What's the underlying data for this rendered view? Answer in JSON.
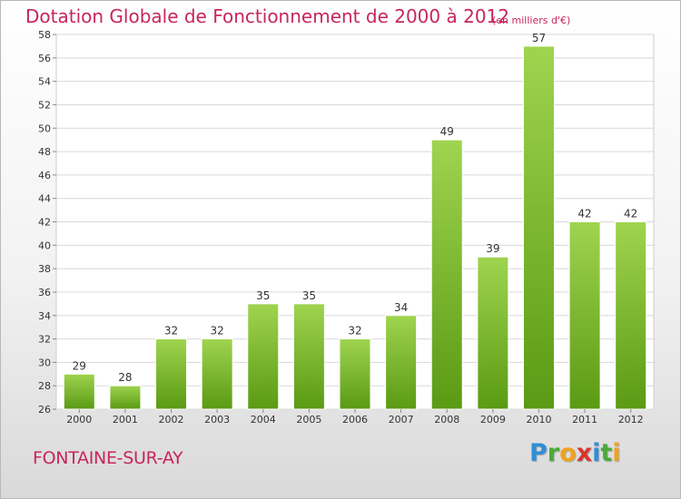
{
  "header": {
    "title": "Dotation Globale de Fonctionnement de 2000 à 2012",
    "subtitle": "(en milliers d'€)"
  },
  "footer": {
    "commune": "FONTAINE-SUR-AY",
    "logo_letters": [
      "P",
      "r",
      "o",
      "x",
      "i",
      "t",
      "i"
    ]
  },
  "colors": {
    "title": "#c8255f",
    "bar_top": "#9fd44f",
    "bar_bottom": "#5a9a14"
  },
  "chart_data": {
    "type": "bar",
    "title": "Dotation Globale de Fonctionnement de 2000 à 2012",
    "subtitle": "(en milliers d'€)",
    "xlabel": "",
    "ylabel": "",
    "categories": [
      "2000",
      "2001",
      "2002",
      "2003",
      "2004",
      "2005",
      "2006",
      "2007",
      "2008",
      "2009",
      "2010",
      "2011",
      "2012"
    ],
    "values": [
      29,
      28,
      32,
      32,
      35,
      35,
      32,
      34,
      49,
      39,
      57,
      42,
      42
    ],
    "ylim": [
      26,
      58
    ],
    "yticks": [
      26,
      28,
      30,
      32,
      34,
      36,
      38,
      40,
      42,
      44,
      46,
      48,
      50,
      52,
      54,
      56,
      58
    ],
    "grid": true,
    "legend": "none"
  }
}
